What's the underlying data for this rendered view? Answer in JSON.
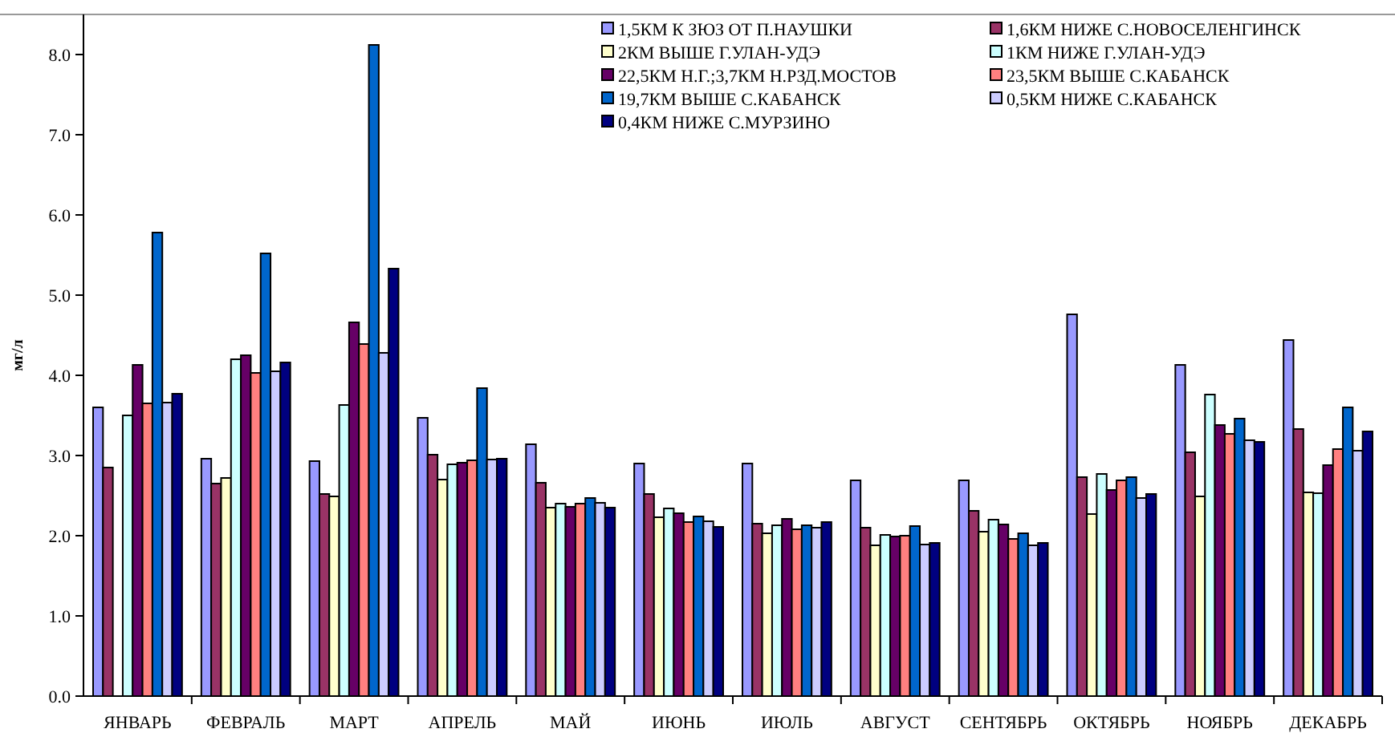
{
  "chart_data": {
    "type": "bar",
    "ylabel": "мг/л",
    "categories": [
      "ЯНВАРЬ",
      "ФЕВРАЛЬ",
      "МАРТ",
      "АПРЕЛЬ",
      "МАЙ",
      "ИЮНЬ",
      "ИЮЛЬ",
      "АВГУСТ",
      "СЕНТЯБРЬ",
      "ОКТЯБРЬ",
      "НОЯБРЬ",
      "ДЕКАБРЬ"
    ],
    "series": [
      {
        "name": "1,5КМ К ЗЮЗ ОТ П.НАУШКИ",
        "color": "#9999ff",
        "values": [
          3.6,
          2.96,
          2.93,
          3.47,
          3.14,
          2.9,
          2.9,
          2.69,
          2.69,
          4.76,
          4.13,
          4.44
        ]
      },
      {
        "name": "1,6КМ НИЖЕ С.НОВОСЕЛЕНГИНСК",
        "color": "#993366",
        "values": [
          2.85,
          2.65,
          2.52,
          3.01,
          2.66,
          2.52,
          2.15,
          2.1,
          2.31,
          2.73,
          3.04,
          3.33
        ]
      },
      {
        "name": "2КМ ВЫШЕ Г.УЛАН-УДЭ",
        "color": "#ffffcc",
        "values": [
          null,
          2.72,
          2.49,
          2.7,
          2.35,
          2.23,
          2.03,
          1.88,
          2.05,
          2.27,
          2.49,
          2.54
        ]
      },
      {
        "name": "1КМ НИЖЕ Г.УЛАН-УДЭ",
        "color": "#ccffff",
        "values": [
          3.5,
          4.2,
          3.63,
          2.89,
          2.4,
          2.34,
          2.13,
          2.01,
          2.2,
          2.77,
          3.76,
          2.53
        ]
      },
      {
        "name": "22,5КМ Н.Г.;3,7КМ Н.РЗД.МОСТОВ",
        "color": "#660066",
        "values": [
          4.13,
          4.25,
          4.66,
          2.91,
          2.36,
          2.28,
          2.21,
          1.99,
          2.14,
          2.57,
          3.38,
          2.88
        ]
      },
      {
        "name": "23,5КМ ВЫШЕ С.КАБАНСК",
        "color": "#ff8080",
        "values": [
          3.65,
          4.03,
          4.39,
          2.94,
          2.4,
          2.17,
          2.08,
          2.0,
          1.96,
          2.69,
          3.27,
          3.08
        ]
      },
      {
        "name": "19,7КМ ВЫШЕ С.КАБАНСК",
        "color": "#0066cc",
        "values": [
          5.78,
          5.52,
          8.12,
          3.84,
          2.47,
          2.24,
          2.13,
          2.12,
          2.03,
          2.73,
          3.46,
          3.6
        ]
      },
      {
        "name": "0,5КМ НИЖЕ С.КАБАНСК",
        "color": "#ccccff",
        "values": [
          3.66,
          4.05,
          4.28,
          2.95,
          2.41,
          2.18,
          2.1,
          1.89,
          1.88,
          2.47,
          3.19,
          3.06
        ]
      },
      {
        "name": "0,4КМ НИЖЕ С.МУРЗИНО",
        "color": "#000080",
        "values": [
          3.77,
          4.16,
          5.33,
          2.96,
          2.35,
          2.11,
          2.17,
          1.91,
          1.91,
          2.52,
          3.17,
          3.3
        ]
      }
    ],
    "ylim": [
      0,
      8.5
    ],
    "yticks": [
      {
        "value": 0,
        "label": "0.0"
      },
      {
        "value": 1,
        "label": "1.0"
      },
      {
        "value": 2,
        "label": "2.0"
      },
      {
        "value": 3,
        "label": "3.0"
      },
      {
        "value": 4,
        "label": "4.0"
      },
      {
        "value": 5,
        "label": "5.0"
      },
      {
        "value": 6,
        "label": "6.0"
      },
      {
        "value": 7,
        "label": "7.0"
      },
      {
        "value": 8,
        "label": "8.0"
      }
    ],
    "legend": "top right"
  }
}
